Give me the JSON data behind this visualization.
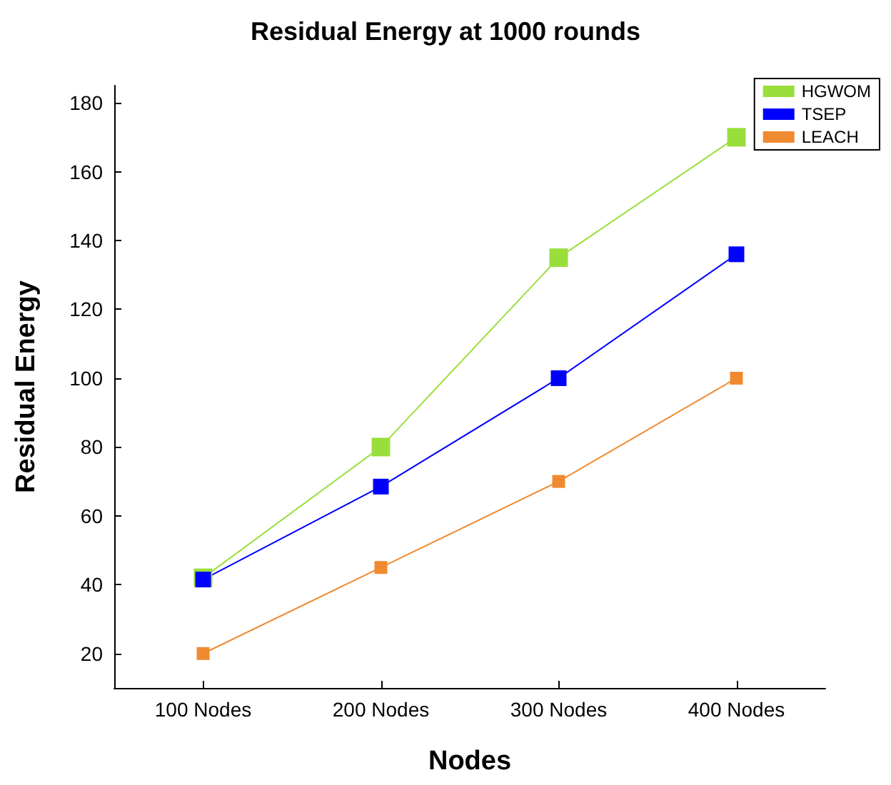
{
  "chart_data": {
    "type": "line",
    "title": "Residual Energy at 1000 rounds",
    "xlabel": "Nodes",
    "ylabel": "Residual Energy",
    "categories": [
      "100 Nodes",
      "200 Nodes",
      "300 Nodes",
      "400 Nodes"
    ],
    "series": [
      {
        "name": "HGWOM",
        "color": "#9ade3c",
        "values": [
          42,
          80,
          135,
          170
        ]
      },
      {
        "name": "TSEP",
        "color": "#0000ff",
        "values": [
          41.5,
          68.5,
          100,
          136
        ]
      },
      {
        "name": "LEACH",
        "color": "#f08a30",
        "values": [
          20,
          45,
          70,
          100
        ]
      }
    ],
    "ylim": [
      10,
      185
    ],
    "yticks": [
      20,
      40,
      60,
      80,
      100,
      120,
      140,
      160,
      180
    ],
    "grid": false,
    "legend": "top right",
    "marker": "square",
    "line_style": "solid"
  }
}
